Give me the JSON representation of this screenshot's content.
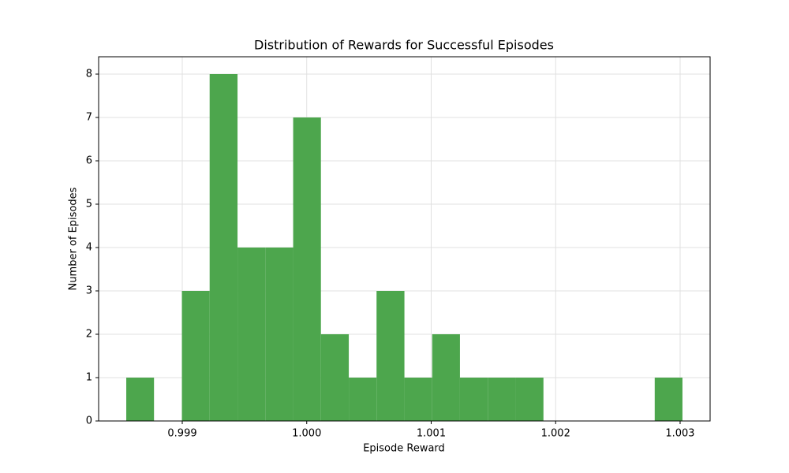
{
  "chart_data": {
    "type": "histogram",
    "title": "Distribution of Rewards for Successful Episodes",
    "x_label": "Episode Reward",
    "y_label": "Number of Episodes",
    "bins": [
      0.99855,
      0.998773,
      0.998997,
      0.99922,
      0.999444,
      0.999667,
      0.999891,
      1.000114,
      1.000338,
      1.000561,
      1.000785,
      1.001008,
      1.001231,
      1.001455,
      1.001678,
      1.001902,
      1.002125,
      1.002349,
      1.002572,
      1.002796,
      1.003019
    ],
    "counts": [
      1,
      0,
      3,
      8,
      4,
      4,
      7,
      2,
      1,
      3,
      1,
      2,
      1,
      1,
      1,
      0,
      0,
      0,
      0,
      1
    ],
    "color": "#4da64d",
    "xlim": [
      0.998328,
      1.003241
    ],
    "ylim": [
      0,
      8.4
    ],
    "xticks": [
      0.999,
      {
        "value": 1,
        "label": "1.000"
      },
      1.001,
      1.002,
      1.003
    ],
    "yticks": [
      0,
      1,
      2,
      3,
      4,
      5,
      6,
      7,
      8
    ],
    "grid": true
  }
}
